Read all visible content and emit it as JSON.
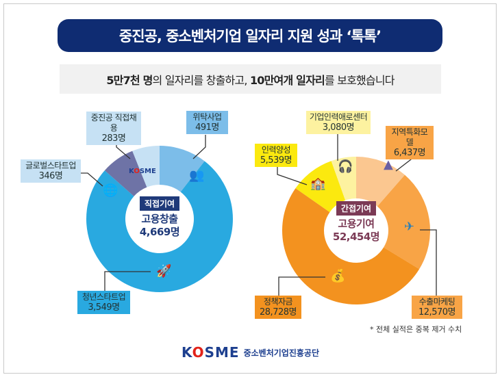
{
  "title": "중진공, 중소벤처기업 일자리 지원 성과 ‘톡톡’",
  "subtitle": {
    "p1": "5만7천 명",
    "p2": "의 일자리를 창출하고, ",
    "p3": "10만여개 일자리",
    "p4": "를 보호했습니다"
  },
  "footnote": "* 전체 실적은 중복 제거 수치",
  "footer": {
    "logo": "KOSME",
    "logo_k": "K",
    "logo_o": "O",
    "logo_rest": "SME",
    "org": "중소벤처기업진흥공단"
  },
  "chart_data": [
    {
      "type": "donut",
      "center_tag": "직접기여",
      "center_title": "고용창출",
      "center_value": "4,669명",
      "tag_color": "#1f3a7a",
      "text_color": "#1f3a7a",
      "categories": [
        "위탁사업",
        "청년스타트업",
        "글로벌스타트업",
        "중진공 직접채용"
      ],
      "values": [
        491,
        3549,
        346,
        283
      ],
      "value_labels": [
        "491명",
        "3,549명",
        "346명",
        "283명"
      ],
      "colors": [
        "#7cbde9",
        "#29a9e0",
        "#6e73a6",
        "#c6e1f4"
      ],
      "icons": [
        "people-icon",
        "rocket-icon",
        "globe-icon",
        "kosme-logo"
      ]
    },
    {
      "type": "donut",
      "center_tag": "간접기여",
      "center_title": "고용기여",
      "center_value": "52,454명",
      "tag_color": "#7b3a55",
      "text_color": "#7b3a55",
      "categories": [
        "지역특화모델",
        "수출마케팅",
        "정책자금",
        "인력양성",
        "기업인력애로센터"
      ],
      "values": [
        6437,
        12570,
        28728,
        5539,
        3080
      ],
      "value_labels": [
        "6,437명",
        "12,570명",
        "28,728명",
        "5,539명",
        "3,080명"
      ],
      "colors": [
        "#fbc790",
        "#f8a446",
        "#f3921f",
        "#fbe90f",
        "#fdf2a0"
      ],
      "icons": [
        "korea-map-icon",
        "airplane-icon",
        "money-bag-icon",
        "school-icon",
        "headset-icon"
      ]
    }
  ]
}
